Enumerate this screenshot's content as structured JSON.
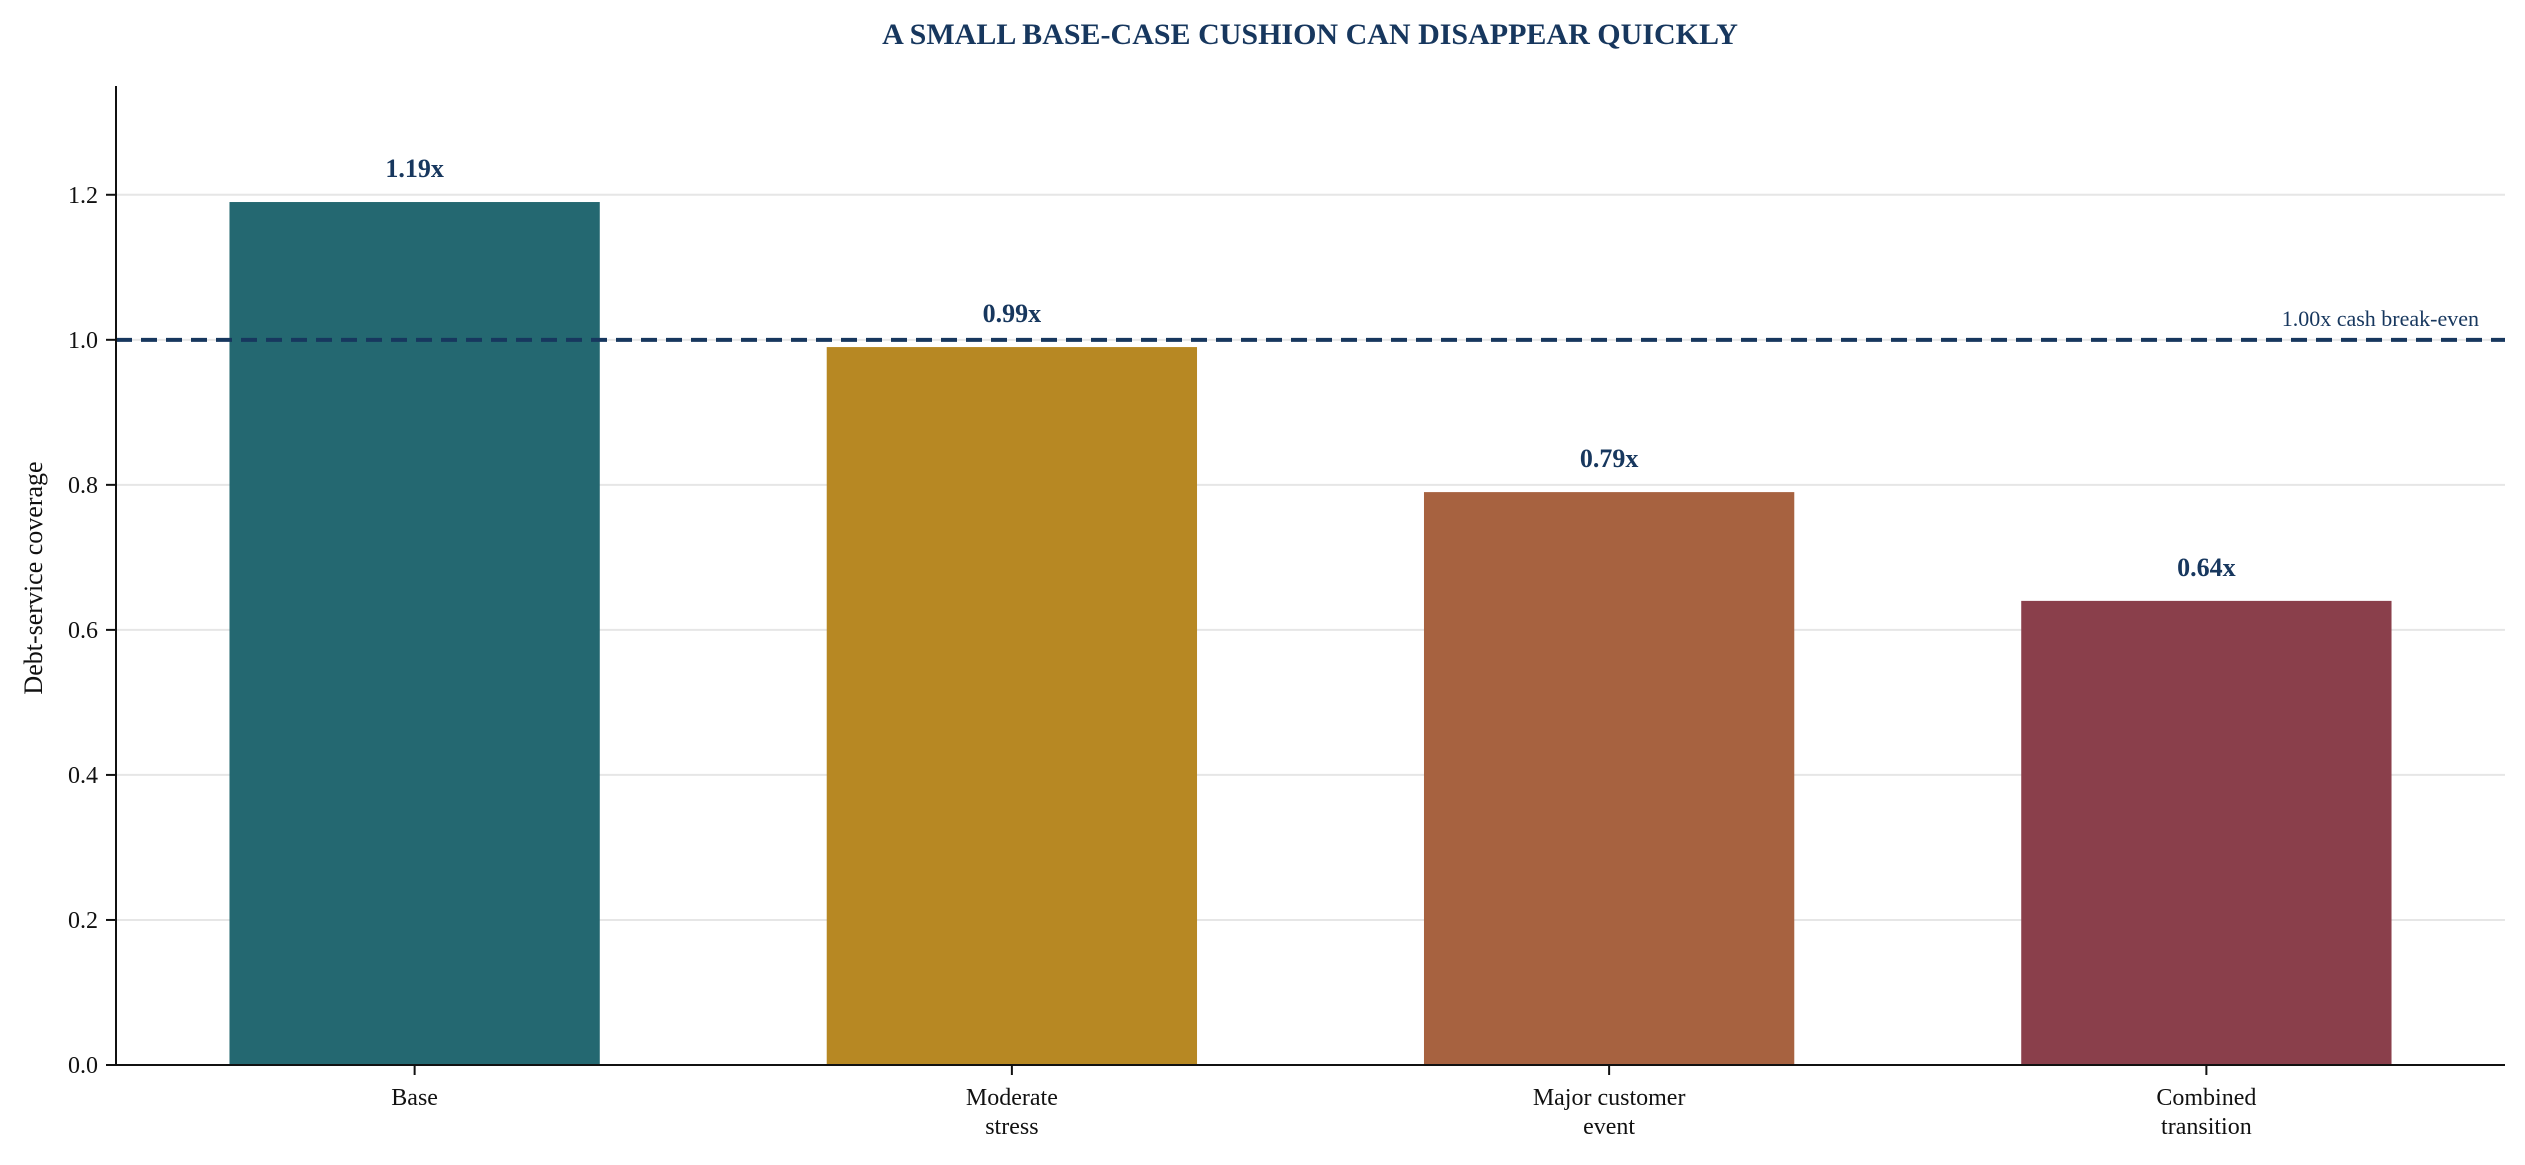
{
  "chart_data": {
    "type": "bar",
    "title": "A SMALL BASE-CASE CUSHION CAN DISAPPEAR QUICKLY",
    "xlabel": "",
    "ylabel": "Debt-service coverage",
    "categories": [
      [
        "Base"
      ],
      [
        "Moderate",
        "stress"
      ],
      [
        "Major customer",
        "event"
      ],
      [
        "Combined",
        "transition"
      ]
    ],
    "values": [
      1.19,
      0.99,
      0.79,
      0.64
    ],
    "data_labels": [
      "1.19x",
      "0.99x",
      "0.79x",
      "0.64x"
    ],
    "colors": [
      "#246871",
      "#b78823",
      "#a76240",
      "#8a3f4b"
    ],
    "ylim": [
      0,
      1.35
    ],
    "yticks": [
      0.0,
      0.2,
      0.4,
      0.6,
      0.8,
      1.0,
      1.2
    ],
    "ytick_labels": [
      "0.0",
      "0.2",
      "0.4",
      "0.6",
      "0.8",
      "1.0",
      "1.2"
    ],
    "reference_line": {
      "value": 1.0,
      "label": "1.00x cash break-even",
      "style": "dashed",
      "color": "#17375e"
    },
    "grid": "horizontal",
    "legend": "none"
  }
}
